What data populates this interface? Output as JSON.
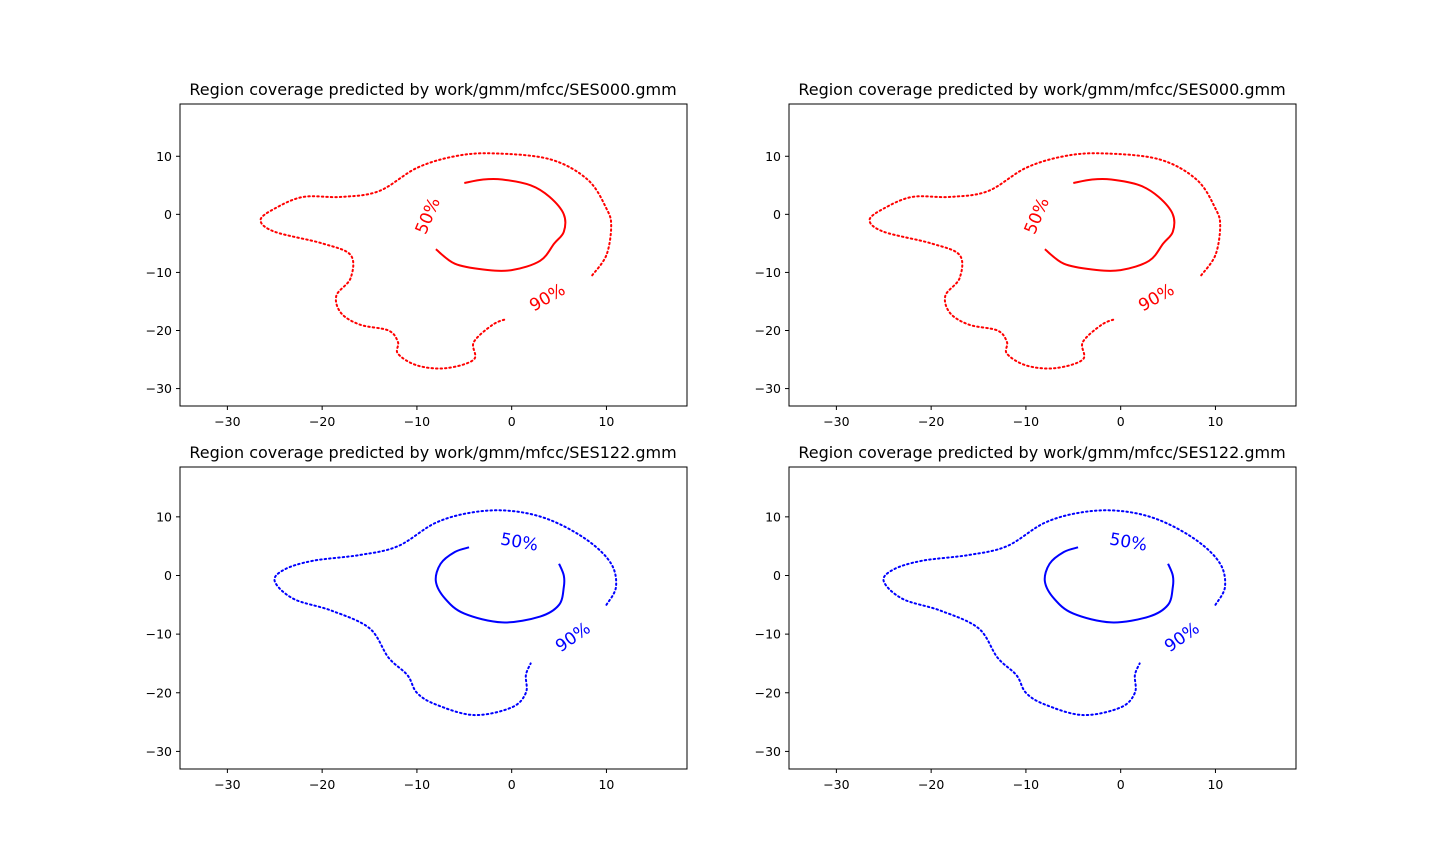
{
  "chart_data": [
    {
      "type": "contour",
      "title": "Region coverage predicted by work/gmm/mfcc/SES000.gmm",
      "xlabel": "",
      "ylabel": "",
      "xlim": [
        -35,
        18.5
      ],
      "ylim": [
        -33,
        19
      ],
      "xticks": [
        -30,
        -20,
        -10,
        0,
        10
      ],
      "yticks": [
        -30,
        -20,
        -10,
        0,
        10
      ],
      "grid": false,
      "color": "#ff0000",
      "contours": [
        {
          "level_label": "50%",
          "style": "solid",
          "label_at": [
            -8.8,
            -0.3
          ],
          "label_angle": -67,
          "points": [
            [
              -5,
              5.4
            ],
            [
              -3,
              6
            ],
            [
              -1,
              6
            ],
            [
              2,
              5
            ],
            [
              4,
              3
            ],
            [
              5.5,
              0
            ],
            [
              5.5,
              -3
            ],
            [
              4.5,
              -5
            ],
            [
              3,
              -8
            ],
            [
              0,
              -9.6
            ],
            [
              -3,
              -9.5
            ],
            [
              -6,
              -8.5
            ],
            [
              -8,
              -6
            ]
          ]
        },
        {
          "level_label": "90%",
          "style": "dotted",
          "label_at": [
            3.8,
            -14.4
          ],
          "label_angle": -30,
          "points": [
            [
              8.5,
              -10.5
            ],
            [
              10,
              -7
            ],
            [
              10.5,
              -2
            ],
            [
              10,
              1
            ],
            [
              8,
              6
            ],
            [
              4,
              9.5
            ],
            [
              -2,
              10.5
            ],
            [
              -6,
              10
            ],
            [
              -10,
              8
            ],
            [
              -14,
              4
            ],
            [
              -18,
              3
            ],
            [
              -22,
              3
            ],
            [
              -25,
              1
            ],
            [
              -26.5,
              -1
            ],
            [
              -25,
              -3
            ],
            [
              -20,
              -5
            ],
            [
              -17,
              -7
            ],
            [
              -17,
              -11
            ],
            [
              -18.5,
              -14
            ],
            [
              -18,
              -17
            ],
            [
              -16,
              -19
            ],
            [
              -13,
              -20
            ],
            [
              -12,
              -22
            ],
            [
              -12,
              -24
            ],
            [
              -10,
              -26
            ],
            [
              -7,
              -26.5
            ],
            [
              -4,
              -25
            ],
            [
              -4,
              -22
            ],
            [
              -2,
              -19
            ],
            [
              -0.5,
              -18
            ]
          ]
        }
      ]
    },
    {
      "type": "contour",
      "title": "Region coverage predicted by work/gmm/mfcc/SES000.gmm",
      "xlabel": "",
      "ylabel": "",
      "xlim": [
        -35,
        18.5
      ],
      "ylim": [
        -33,
        19
      ],
      "xticks": [
        -30,
        -20,
        -10,
        0,
        10
      ],
      "yticks": [
        -30,
        -20,
        -10,
        0,
        10
      ],
      "grid": false,
      "color": "#ff0000",
      "contours": [
        {
          "level_label": "50%",
          "style": "solid",
          "label_at": [
            -8.8,
            -0.3
          ],
          "label_angle": -67,
          "points": [
            [
              -5,
              5.4
            ],
            [
              -3,
              6
            ],
            [
              -1,
              6
            ],
            [
              2,
              5
            ],
            [
              4,
              3
            ],
            [
              5.5,
              0
            ],
            [
              5.5,
              -3
            ],
            [
              4.5,
              -5
            ],
            [
              3,
              -8
            ],
            [
              0,
              -9.6
            ],
            [
              -3,
              -9.5
            ],
            [
              -6,
              -8.5
            ],
            [
              -8,
              -6
            ]
          ]
        },
        {
          "level_label": "90%",
          "style": "dotted",
          "label_at": [
            3.8,
            -14.4
          ],
          "label_angle": -30,
          "points": [
            [
              8.5,
              -10.5
            ],
            [
              10,
              -7
            ],
            [
              10.5,
              -2
            ],
            [
              10,
              1
            ],
            [
              8,
              6
            ],
            [
              4,
              9.5
            ],
            [
              -2,
              10.5
            ],
            [
              -6,
              10
            ],
            [
              -10,
              8
            ],
            [
              -14,
              4
            ],
            [
              -18,
              3
            ],
            [
              -22,
              3
            ],
            [
              -25,
              1
            ],
            [
              -26.5,
              -1
            ],
            [
              -25,
              -3
            ],
            [
              -20,
              -5
            ],
            [
              -17,
              -7
            ],
            [
              -17,
              -11
            ],
            [
              -18.5,
              -14
            ],
            [
              -18,
              -17
            ],
            [
              -16,
              -19
            ],
            [
              -13,
              -20
            ],
            [
              -12,
              -22
            ],
            [
              -12,
              -24
            ],
            [
              -10,
              -26
            ],
            [
              -7,
              -26.5
            ],
            [
              -4,
              -25
            ],
            [
              -4,
              -22
            ],
            [
              -2,
              -19
            ],
            [
              -0.5,
              -18
            ]
          ]
        }
      ]
    },
    {
      "type": "contour",
      "title": "Region coverage predicted by work/gmm/mfcc/SES122.gmm",
      "xlabel": "",
      "ylabel": "",
      "xlim": [
        -35,
        18.5
      ],
      "ylim": [
        -33,
        18.5
      ],
      "xticks": [
        -30,
        -20,
        -10,
        0,
        10
      ],
      "yticks": [
        -30,
        -20,
        -10,
        0,
        10
      ],
      "grid": false,
      "color": "#0000ff",
      "contours": [
        {
          "level_label": "50%",
          "style": "solid",
          "label_at": [
            0.8,
            5.6
          ],
          "label_angle": 10,
          "points": [
            [
              -4.5,
              4.8
            ],
            [
              -6,
              4
            ],
            [
              -7.5,
              2
            ],
            [
              -8,
              -1
            ],
            [
              -7,
              -4
            ],
            [
              -5,
              -6.5
            ],
            [
              -1,
              -8
            ],
            [
              3,
              -7
            ],
            [
              5,
              -5
            ],
            [
              5.5,
              -2
            ],
            [
              5.5,
              0
            ],
            [
              5,
              2
            ]
          ]
        },
        {
          "level_label": "90%",
          "style": "dotted",
          "label_at": [
            6.5,
            -10.6
          ],
          "label_angle": -35,
          "points": [
            [
              10,
              -5
            ],
            [
              11,
              -2
            ],
            [
              10.5,
              2
            ],
            [
              8,
              6
            ],
            [
              4,
              9.5
            ],
            [
              0,
              11
            ],
            [
              -4,
              10.8
            ],
            [
              -8,
              9
            ],
            [
              -12,
              5
            ],
            [
              -16,
              3.5
            ],
            [
              -21,
              2.5
            ],
            [
              -24,
              1
            ],
            [
              -25,
              -1
            ],
            [
              -23,
              -4
            ],
            [
              -19,
              -6
            ],
            [
              -15,
              -9
            ],
            [
              -13,
              -14
            ],
            [
              -11,
              -17
            ],
            [
              -10,
              -20
            ],
            [
              -8,
              -22
            ],
            [
              -4,
              -23.8
            ],
            [
              0,
              -22.5
            ],
            [
              1.5,
              -20
            ],
            [
              1.5,
              -17
            ],
            [
              2,
              -15
            ]
          ]
        }
      ]
    },
    {
      "type": "contour",
      "title": "Region coverage predicted by work/gmm/mfcc/SES122.gmm",
      "xlabel": "",
      "ylabel": "",
      "xlim": [
        -35,
        18.5
      ],
      "ylim": [
        -33,
        18.5
      ],
      "xticks": [
        -30,
        -20,
        -10,
        0,
        10
      ],
      "yticks": [
        -30,
        -20,
        -10,
        0,
        10
      ],
      "grid": false,
      "color": "#0000ff",
      "contours": [
        {
          "level_label": "50%",
          "style": "solid",
          "label_at": [
            0.8,
            5.6
          ],
          "label_angle": 10,
          "points": [
            [
              -4.5,
              4.8
            ],
            [
              -6,
              4
            ],
            [
              -7.5,
              2
            ],
            [
              -8,
              -1
            ],
            [
              -7,
              -4
            ],
            [
              -5,
              -6.5
            ],
            [
              -1,
              -8
            ],
            [
              3,
              -7
            ],
            [
              5,
              -5
            ],
            [
              5.5,
              -2
            ],
            [
              5.5,
              0
            ],
            [
              5,
              2
            ]
          ]
        },
        {
          "level_label": "90%",
          "style": "dotted",
          "label_at": [
            6.5,
            -10.6
          ],
          "label_angle": -35,
          "points": [
            [
              10,
              -5
            ],
            [
              11,
              -2
            ],
            [
              10.5,
              2
            ],
            [
              8,
              6
            ],
            [
              4,
              9.5
            ],
            [
              0,
              11
            ],
            [
              -4,
              10.8
            ],
            [
              -8,
              9
            ],
            [
              -12,
              5
            ],
            [
              -16,
              3.5
            ],
            [
              -21,
              2.5
            ],
            [
              -24,
              1
            ],
            [
              -25,
              -1
            ],
            [
              -23,
              -4
            ],
            [
              -19,
              -6
            ],
            [
              -15,
              -9
            ],
            [
              -13,
              -14
            ],
            [
              -11,
              -17
            ],
            [
              -10,
              -20
            ],
            [
              -8,
              -22
            ],
            [
              -4,
              -23.8
            ],
            [
              0,
              -22.5
            ],
            [
              1.5,
              -20
            ],
            [
              1.5,
              -17
            ],
            [
              2,
              -15
            ]
          ]
        }
      ]
    }
  ]
}
